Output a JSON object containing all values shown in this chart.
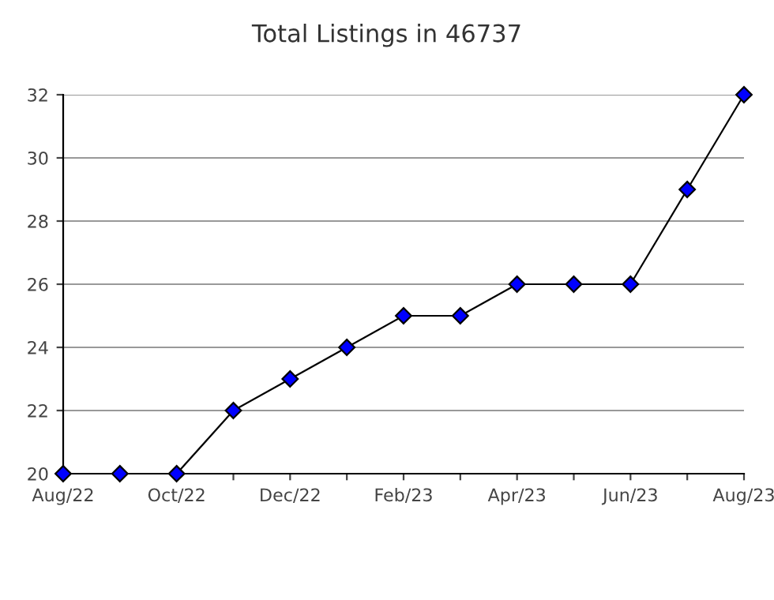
{
  "chart_data": {
    "type": "line",
    "title": "Total Listings in 46737",
    "categories": [
      "Aug/22",
      null,
      "Oct/22",
      null,
      "Dec/22",
      null,
      "Feb/23",
      null,
      "Apr/23",
      null,
      "Jun/23",
      null,
      "Aug/23"
    ],
    "series": [
      {
        "color": "#0000ff",
        "values": [
          20,
          20,
          20,
          22,
          23,
          24,
          25,
          25,
          26,
          26,
          26,
          29,
          32
        ]
      }
    ],
    "ylim": [
      20,
      32
    ],
    "yticks": [
      20,
      22,
      24,
      26,
      28,
      30,
      32
    ],
    "grid": "y",
    "marker": "diamond",
    "line_style": "solid",
    "legend": false
  }
}
